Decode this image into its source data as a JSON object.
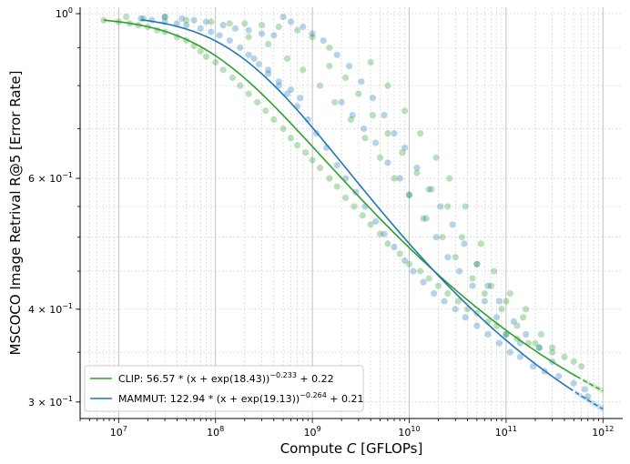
{
  "chart_data": {
    "type": "scatter",
    "title": "",
    "xlabel": "Compute C [GFLOPs]",
    "ylabel": "MSCOCO Image Retrival R@5 [Error Rate]",
    "x_scale": "log",
    "y_scale": "log",
    "xlim": [
      4000000.0,
      1600000000000.0
    ],
    "ylim": [
      0.285,
      1.02
    ],
    "grid": true,
    "legend_position": "lower-left",
    "x_ticks": [
      {
        "value": 10000000.0,
        "base": "10",
        "exp": "7"
      },
      {
        "value": 100000000.0,
        "base": "10",
        "exp": "8"
      },
      {
        "value": 1000000000.0,
        "base": "10",
        "exp": "9"
      },
      {
        "value": 10000000000.0,
        "base": "10",
        "exp": "10"
      },
      {
        "value": 100000000000.0,
        "base": "10",
        "exp": "11"
      },
      {
        "value": 1000000000000.0,
        "base": "10",
        "exp": "12"
      }
    ],
    "y_ticks": [
      {
        "value": 1.0,
        "base": "10",
        "exp": "0",
        "coef": ""
      },
      {
        "value": 0.6,
        "base": "10",
        "exp": "−1",
        "coef": "6 × "
      },
      {
        "value": 0.4,
        "base": "10",
        "exp": "−1",
        "coef": "4 × "
      },
      {
        "value": 0.3,
        "base": "10",
        "exp": "−1",
        "coef": "3 × "
      }
    ],
    "series": [
      {
        "name": "CLIP",
        "legend": "CLIP: 56.57 * (x + exp(18.43))^−0.233 + 0.22",
        "legend_parts": {
          "pre": "CLIP: 56.57 * (x + exp(18.43))",
          "exp": "−0.233",
          "post": " + 0.22"
        },
        "color": "#2ca02c",
        "fit": {
          "a": 56.57,
          "b": 18.43,
          "alpha": 0.233,
          "e": 0.22
        },
        "curve_x_range": [
          7000000.0,
          1000000000000.0
        ],
        "extrapolate_from": 600000000000.0,
        "points": [
          [
            7000000.0,
            0.98
          ],
          [
            10000000.0,
            0.975
          ],
          [
            13000000.0,
            0.97
          ],
          [
            16000000.0,
            0.965
          ],
          [
            20000000.0,
            0.96
          ],
          [
            25000000.0,
            0.95
          ],
          [
            30000000.0,
            0.945
          ],
          [
            40000000.0,
            0.93
          ],
          [
            50000000.0,
            0.92
          ],
          [
            60000000.0,
            0.905
          ],
          [
            70000000.0,
            0.89
          ],
          [
            80000000.0,
            0.875
          ],
          [
            100000000.0,
            0.86
          ],
          [
            120000000.0,
            0.84
          ],
          [
            150000000.0,
            0.82
          ],
          [
            180000000.0,
            0.8
          ],
          [
            220000000.0,
            0.78
          ],
          [
            270000000.0,
            0.76
          ],
          [
            330000000.0,
            0.74
          ],
          [
            400000000.0,
            0.72
          ],
          [
            500000000.0,
            0.7
          ],
          [
            600000000.0,
            0.68
          ],
          [
            700000000.0,
            0.665
          ],
          [
            850000000.0,
            0.65
          ],
          [
            1000000000.0,
            0.635
          ],
          [
            1200000000.0,
            0.62
          ],
          [
            1500000000.0,
            0.6
          ],
          [
            1800000000.0,
            0.585
          ],
          [
            2200000000.0,
            0.565
          ],
          [
            2700000000.0,
            0.55
          ],
          [
            3300000000.0,
            0.535
          ],
          [
            4000000000.0,
            0.52
          ],
          [
            5000000000.0,
            0.505
          ],
          [
            6000000000.0,
            0.49
          ],
          [
            8000000000.0,
            0.475
          ],
          [
            10000000000.0,
            0.46
          ],
          [
            13000000000.0,
            0.45
          ],
          [
            16000000000.0,
            0.44
          ],
          [
            20000000000.0,
            0.43
          ],
          [
            25000000000.0,
            0.42
          ],
          [
            32000000000.0,
            0.41
          ],
          [
            40000000000.0,
            0.4
          ],
          [
            50000000000.0,
            0.395
          ],
          [
            65000000000.0,
            0.385
          ],
          [
            80000000000.0,
            0.38
          ],
          [
            100000000000.0,
            0.37
          ],
          [
            130000000000.0,
            0.365
          ],
          [
            170000000000.0,
            0.36
          ],
          [
            220000000000.0,
            0.355
          ],
          [
            300000000000.0,
            0.35
          ],
          [
            400000000000.0,
            0.345
          ],
          [
            500000000000.0,
            0.34
          ],
          [
            600000000000.0,
            0.335
          ],
          [
            12000000.0,
            0.99
          ],
          [
            18000000.0,
            0.985
          ],
          [
            30000000.0,
            0.99
          ],
          [
            50000000.0,
            0.98
          ],
          [
            90000000.0,
            0.975
          ],
          [
            140000000.0,
            0.97
          ],
          [
            200000000.0,
            0.97
          ],
          [
            300000000.0,
            0.965
          ],
          [
            450000000.0,
            0.96
          ],
          [
            700000000.0,
            0.95
          ],
          [
            1000000000.0,
            0.93
          ],
          [
            1500000000.0,
            0.9
          ],
          [
            220000000.0,
            0.93
          ],
          [
            350000000.0,
            0.91
          ],
          [
            550000000.0,
            0.87
          ],
          [
            800000000.0,
            0.84
          ],
          [
            1200000000.0,
            0.8
          ],
          [
            1700000000.0,
            0.76
          ],
          [
            2500000000.0,
            0.72
          ],
          [
            3500000000.0,
            0.68
          ],
          [
            5000000000.0,
            0.64
          ],
          [
            7000000000.0,
            0.6
          ],
          [
            10000000000.0,
            0.57
          ],
          [
            15000000000.0,
            0.53
          ],
          [
            22000000000.0,
            0.5
          ],
          [
            30000000000.0,
            0.47
          ],
          [
            45000000000.0,
            0.44
          ],
          [
            60000000000.0,
            0.42
          ],
          [
            90000000000.0,
            0.4
          ],
          [
            130000000000.0,
            0.38
          ],
          [
            200000000000.0,
            0.36
          ],
          [
            300000000000.0,
            0.355
          ],
          [
            1500000000.0,
            0.85
          ],
          [
            2200000000.0,
            0.82
          ],
          [
            3000000000.0,
            0.78
          ],
          [
            4200000000.0,
            0.73
          ],
          [
            6000000000.0,
            0.69
          ],
          [
            8500000000.0,
            0.65
          ],
          [
            12000000000.0,
            0.61
          ],
          [
            17000000000.0,
            0.58
          ],
          [
            25000000000.0,
            0.55
          ],
          [
            35000000000.0,
            0.5
          ],
          [
            50000000000.0,
            0.46
          ],
          [
            70000000000.0,
            0.43
          ],
          [
            100000000000.0,
            0.41
          ],
          [
            150000000000.0,
            0.39
          ],
          [
            4000000000.0,
            0.86
          ],
          [
            6000000000.0,
            0.8
          ],
          [
            9000000000.0,
            0.74
          ],
          [
            13000000000.0,
            0.69
          ],
          [
            19000000000.0,
            0.64
          ],
          [
            26000000000.0,
            0.6
          ],
          [
            38000000000.0,
            0.55
          ],
          [
            55000000000.0,
            0.49
          ],
          [
            75000000000.0,
            0.45
          ],
          [
            110000000000.0,
            0.42
          ],
          [
            160000000000.0,
            0.4
          ],
          [
            230000000000.0,
            0.37
          ]
        ]
      },
      {
        "name": "MAMMUT",
        "legend": "MAMMUT: 122.94 * (x + exp(19.13))^−0.264 + 0.21",
        "legend_parts": {
          "pre": "MAMMUT: 122.94 * (x + exp(19.13))",
          "exp": "−0.264",
          "post": " + 0.21"
        },
        "color": "#1f77b4",
        "fit": {
          "a": 122.94,
          "b": 19.13,
          "alpha": 0.264,
          "e": 0.21
        },
        "curve_x_range": [
          17000000.0,
          1000000000000.0
        ],
        "extrapolate_from": 500000000000.0,
        "points": [
          [
            17000000.0,
            0.985
          ],
          [
            22000000.0,
            0.98
          ],
          [
            30000000.0,
            0.975
          ],
          [
            40000000.0,
            0.97
          ],
          [
            50000000.0,
            0.965
          ],
          [
            70000000.0,
            0.955
          ],
          [
            90000000.0,
            0.945
          ],
          [
            110000000.0,
            0.935
          ],
          [
            140000000.0,
            0.92
          ],
          [
            180000000.0,
            0.9
          ],
          [
            220000000.0,
            0.88
          ],
          [
            280000000.0,
            0.855
          ],
          [
            350000000.0,
            0.83
          ],
          [
            450000000.0,
            0.8
          ],
          [
            550000000.0,
            0.78
          ],
          [
            700000000.0,
            0.75
          ],
          [
            900000000.0,
            0.72
          ],
          [
            1100000000.0,
            0.69
          ],
          [
            1400000000.0,
            0.66
          ],
          [
            1800000000.0,
            0.625
          ],
          [
            2200000000.0,
            0.6
          ],
          [
            2800000000.0,
            0.575
          ],
          [
            3500000000.0,
            0.55
          ],
          [
            4500000000.0,
            0.525
          ],
          [
            5500000000.0,
            0.505
          ],
          [
            7000000000.0,
            0.485
          ],
          [
            9000000000.0,
            0.465
          ],
          [
            11000000000.0,
            0.45
          ],
          [
            14000000000.0,
            0.435
          ],
          [
            18000000000.0,
            0.42
          ],
          [
            23000000000.0,
            0.41
          ],
          [
            30000000000.0,
            0.4
          ],
          [
            38000000000.0,
            0.39
          ],
          [
            50000000000.0,
            0.38
          ],
          [
            65000000000.0,
            0.37
          ],
          [
            85000000000.0,
            0.36
          ],
          [
            110000000000.0,
            0.35
          ],
          [
            140000000000.0,
            0.345
          ],
          [
            190000000000.0,
            0.335
          ],
          [
            250000000000.0,
            0.33
          ],
          [
            350000000000.0,
            0.325
          ],
          [
            500000000000.0,
            0.318
          ],
          [
            650000000000.0,
            0.312
          ],
          [
            30000000.0,
            0.99
          ],
          [
            45000000.0,
            0.985
          ],
          [
            60000000.0,
            0.98
          ],
          [
            80000000.0,
            0.975
          ],
          [
            120000000.0,
            0.965
          ],
          [
            160000000.0,
            0.955
          ],
          [
            220000000.0,
            0.95
          ],
          [
            300000000.0,
            0.94
          ],
          [
            400000000.0,
            0.935
          ],
          [
            500000000.0,
            0.99
          ],
          [
            600000000.0,
            0.975
          ],
          [
            800000000.0,
            0.96
          ],
          [
            1000000000.0,
            0.94
          ],
          [
            1300000000.0,
            0.92
          ],
          [
            1800000000.0,
            0.88
          ],
          [
            2400000000.0,
            0.85
          ],
          [
            3200000000.0,
            0.81
          ],
          [
            4200000000.0,
            0.77
          ],
          [
            5500000000.0,
            0.73
          ],
          [
            7000000000.0,
            0.69
          ],
          [
            9000000000.0,
            0.66
          ],
          [
            12000000000.0,
            0.62
          ],
          [
            16000000000.0,
            0.58
          ],
          [
            21000000000.0,
            0.55
          ],
          [
            28000000000.0,
            0.52
          ],
          [
            37000000000.0,
            0.49
          ],
          [
            50000000000.0,
            0.46
          ],
          [
            65000000000.0,
            0.43
          ],
          [
            85000000000.0,
            0.41
          ],
          [
            120000000000.0,
            0.385
          ],
          [
            160000000000.0,
            0.37
          ],
          [
            220000000000.0,
            0.355
          ],
          [
            300000000000.0,
            0.34
          ],
          [
            250000000.0,
            0.87
          ],
          [
            350000000.0,
            0.84
          ],
          [
            450000000.0,
            0.81
          ],
          [
            600000000.0,
            0.79
          ],
          [
            750000000.0,
            0.77
          ],
          [
            2000000000.0,
            0.76
          ],
          [
            2600000000.0,
            0.73
          ],
          [
            3400000000.0,
            0.7
          ],
          [
            4500000000.0,
            0.67
          ],
          [
            6000000000.0,
            0.63
          ],
          [
            8000000000.0,
            0.6
          ],
          [
            10000000000.0,
            0.57
          ],
          [
            14000000000.0,
            0.53
          ],
          [
            19000000000.0,
            0.5
          ],
          [
            25000000000.0,
            0.47
          ],
          [
            33000000000.0,
            0.45
          ],
          [
            45000000000.0,
            0.43
          ],
          [
            60000000000.0,
            0.41
          ],
          [
            80000000000.0,
            0.39
          ],
          [
            100000000000.0,
            0.37
          ],
          [
            140000000000.0,
            0.36
          ],
          [
            700000000000.0,
            0.305
          ]
        ]
      }
    ]
  }
}
